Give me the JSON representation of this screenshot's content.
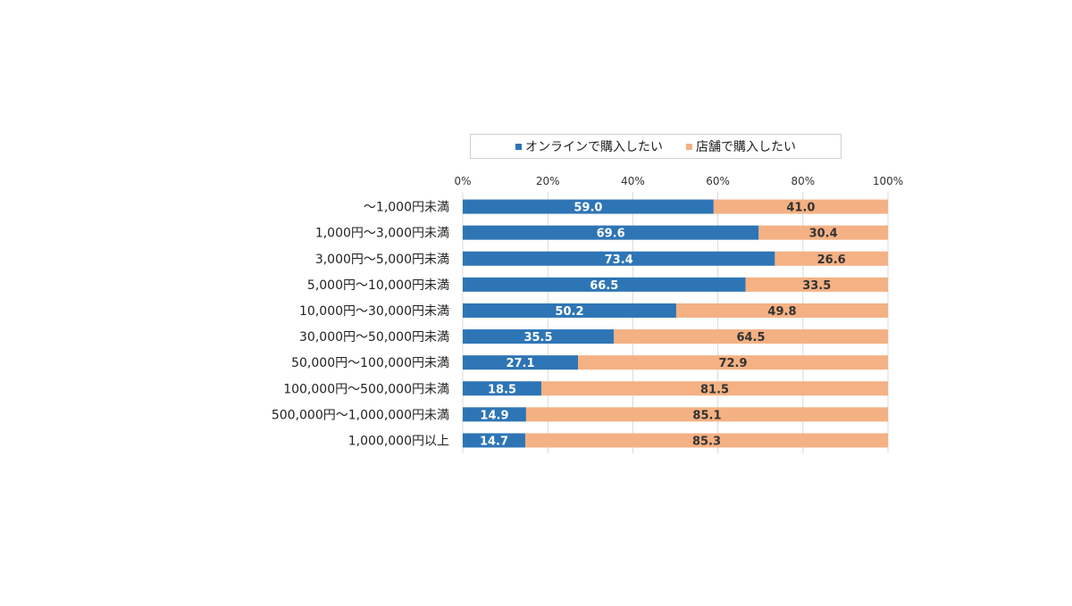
{
  "chart_data": {
    "type": "bar",
    "orientation": "horizontal",
    "stacked": true,
    "percent_stacked": true,
    "categories": [
      "～1,000円未満",
      "1,000円～3,000円未満",
      "3,000円～5,000円未満",
      "5,000円～10,000円未満",
      "10,000円～30,000円未満",
      "30,000円～50,000円未満",
      "50,000円～100,000円未満",
      "100,000円～500,000円未満",
      "500,000円～1,000,000円未満",
      "1,000,000円以上"
    ],
    "series": [
      {
        "name": "オンラインで購入したい",
        "color": "#2e75b6",
        "values": [
          59.0,
          69.6,
          73.4,
          66.5,
          50.2,
          35.5,
          27.1,
          18.5,
          14.9,
          14.7
        ],
        "labels": [
          "59.0",
          "69.6",
          "73.4",
          "66.5",
          "50.2",
          "35.5",
          "27.1",
          "18.5",
          "14.9",
          "14.7"
        ]
      },
      {
        "name": "店舗で購入したい",
        "color": "#f4b183",
        "values": [
          41.0,
          30.4,
          26.6,
          33.5,
          49.8,
          64.5,
          72.9,
          81.5,
          85.1,
          85.3
        ],
        "labels": [
          "41.0",
          "30.4",
          "26.6",
          "33.5",
          "49.8",
          "64.5",
          "72.9",
          "81.5",
          "85.1",
          "85.3"
        ]
      }
    ],
    "xlim": [
      0,
      100
    ],
    "x_ticks": [
      0,
      20,
      40,
      60,
      80,
      100
    ],
    "x_tick_labels": [
      "0%",
      "20%",
      "40%",
      "60%",
      "80%",
      "100%"
    ],
    "x_axis_position": "top",
    "grid": true,
    "legend_position": "top"
  }
}
